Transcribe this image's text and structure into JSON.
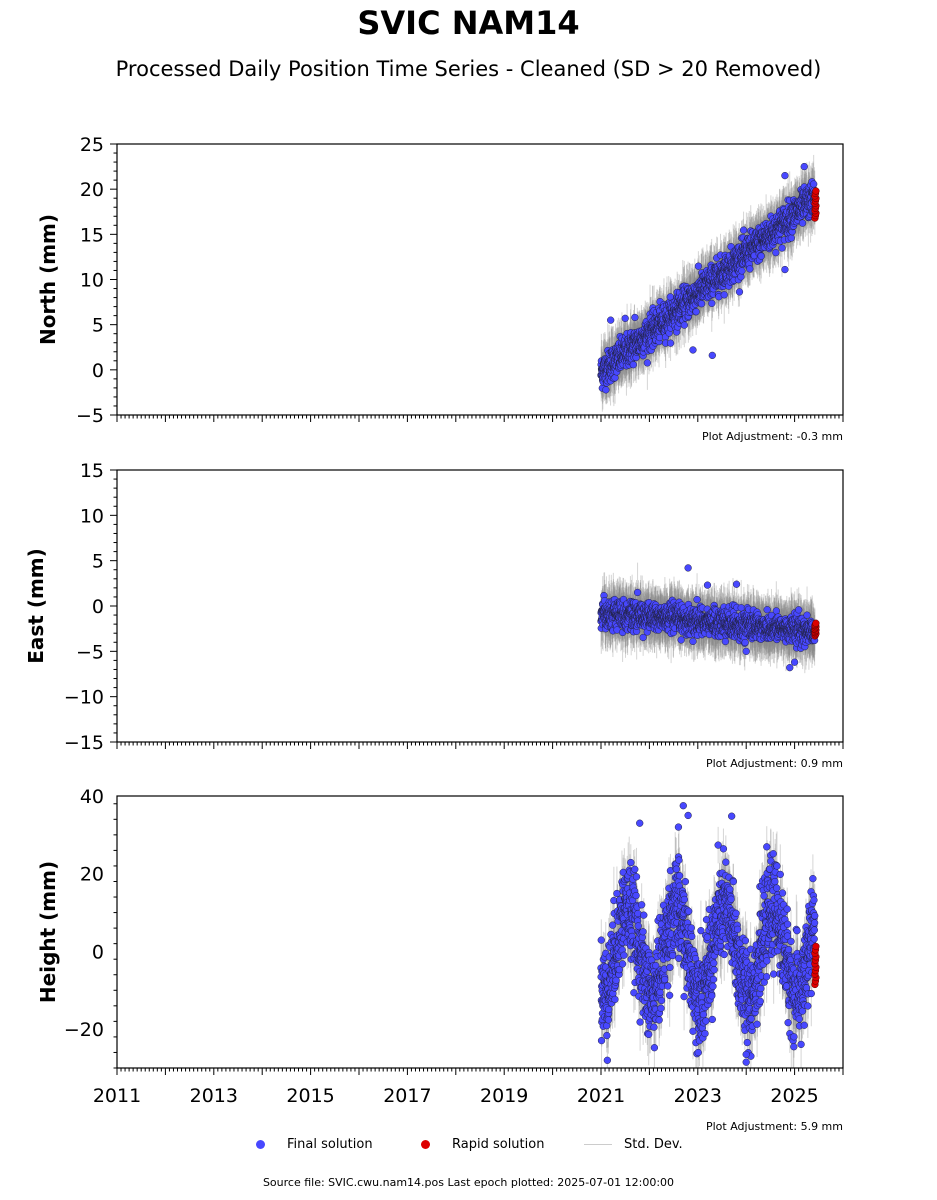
{
  "title": "SVIC NAM14",
  "subtitle": "Processed Daily Position Time Series - Cleaned (SD > 20 Removed)",
  "colors": {
    "final": "#4848ff",
    "rapid": "#dd0000",
    "stddev": "#cccccc",
    "edge": "#222244"
  },
  "legend": {
    "final": "Final solution",
    "rapid": "Rapid solution",
    "stddev": "Std. Dev."
  },
  "footer": "Source file: SVIC.cwu.nam14.pos  Last epoch plotted: 2025-07-01 12:00:00",
  "chart_data": [
    {
      "type": "scatter",
      "ylabel": "North (mm)",
      "xlim": [
        2011,
        2026
      ],
      "ylim": [
        -5,
        25
      ],
      "yticks": [
        -5,
        0,
        5,
        10,
        15,
        20,
        25
      ],
      "adjustment": "Plot Adjustment: -0.3 mm",
      "trend": {
        "start": [
          2021.0,
          -0.3
        ],
        "end": [
          2025.4,
          19.0
        ]
      },
      "rapid_range": [
        16.8,
        19.8
      ],
      "series": [
        {
          "name": "Final solution",
          "points": [
            [
              2021.2,
              5.5
            ],
            [
              2021.5,
              5.7
            ],
            [
              2021.7,
              5.8
            ],
            [
              2022.9,
              2.2
            ],
            [
              2023.3,
              1.6
            ],
            [
              2024.8,
              21.5
            ],
            [
              2025.2,
              22.5
            ],
            [
              2024.8,
              11.1
            ]
          ]
        }
      ]
    },
    {
      "type": "scatter",
      "ylabel": "East (mm)",
      "xlim": [
        2011,
        2026
      ],
      "ylim": [
        -15,
        15
      ],
      "yticks": [
        -15,
        -10,
        -5,
        0,
        5,
        10,
        15
      ],
      "adjustment": "Plot Adjustment: 0.9 mm",
      "trend": {
        "start": [
          2021.0,
          -0.7
        ],
        "end": [
          2025.4,
          -2.8
        ]
      },
      "rapid_range": [
        -3.3,
        -1.9
      ],
      "series": [
        {
          "name": "Final solution",
          "points": [
            [
              2022.8,
              4.2
            ],
            [
              2023.2,
              2.3
            ],
            [
              2023.8,
              2.4
            ],
            [
              2024.0,
              -5.0
            ],
            [
              2024.9,
              -6.8
            ],
            [
              2025.0,
              -6.2
            ],
            [
              2022.9,
              -3.9
            ]
          ]
        }
      ]
    },
    {
      "type": "scatter",
      "ylabel": "Height (mm)",
      "xlim": [
        2011,
        2026
      ],
      "ylim": [
        -30,
        40
      ],
      "yticks": [
        -20,
        0,
        20,
        40
      ],
      "adjustment": "Plot Adjustment: 5.9 mm",
      "seasonal": {
        "amplitude": 11,
        "peak_phase": 0.55
      },
      "rapid_range": [
        -8.5,
        1.3
      ],
      "series": [
        {
          "name": "Final solution",
          "points": [
            [
              2022.7,
              37.5
            ],
            [
              2022.8,
              35.0
            ],
            [
              2023.7,
              34.8
            ],
            [
              2021.8,
              33.0
            ],
            [
              2022.6,
              32.0
            ],
            [
              2024.0,
              -26.5
            ],
            [
              2024.0,
              -28.5
            ],
            [
              2023.3,
              -17.5
            ],
            [
              2025.2,
              -19.0
            ]
          ]
        }
      ]
    }
  ],
  "x_ticks": [
    "2011",
    "2013",
    "2015",
    "2017",
    "2019",
    "2021",
    "2023",
    "2025"
  ],
  "x_tick_values": [
    2011,
    2013,
    2015,
    2017,
    2019,
    2021,
    2023,
    2025
  ]
}
